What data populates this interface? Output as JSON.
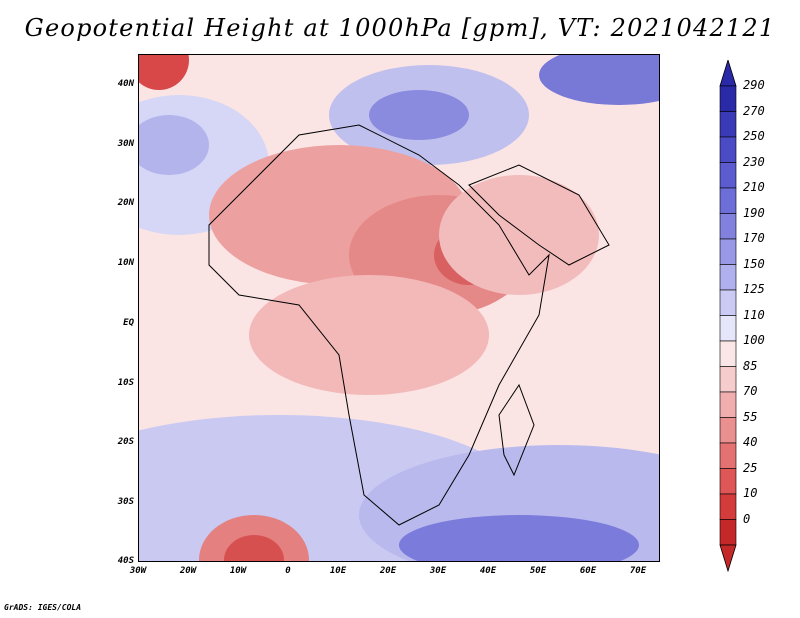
{
  "title": "Geopotential Height at 1000hPa [gpm], VT: 2021042121",
  "footer": "GrADS: IGES/COLA",
  "map": {
    "variable": "Geopotential Height",
    "level": "1000hPa",
    "units": "gpm",
    "valid_time": "2021042121",
    "lon_range": [
      -30,
      75
    ],
    "lat_range": [
      -40,
      45
    ],
    "lat_ticks": [
      {
        "value": 40,
        "label": "40N"
      },
      {
        "value": 30,
        "label": "30N"
      },
      {
        "value": 20,
        "label": "20N"
      },
      {
        "value": 10,
        "label": "10N"
      },
      {
        "value": 0,
        "label": "EQ"
      },
      {
        "value": -10,
        "label": "10S"
      },
      {
        "value": -20,
        "label": "20S"
      },
      {
        "value": -30,
        "label": "30S"
      },
      {
        "value": -40,
        "label": "40S"
      }
    ],
    "lon_ticks": [
      {
        "value": -30,
        "label": "30W"
      },
      {
        "value": -20,
        "label": "20W"
      },
      {
        "value": -10,
        "label": "10W"
      },
      {
        "value": 0,
        "label": "0"
      },
      {
        "value": 10,
        "label": "10E"
      },
      {
        "value": 20,
        "label": "20E"
      },
      {
        "value": 30,
        "label": "30E"
      },
      {
        "value": 40,
        "label": "40E"
      },
      {
        "value": 50,
        "label": "50E"
      },
      {
        "value": 60,
        "label": "60E"
      },
      {
        "value": 70,
        "label": "70E"
      }
    ]
  },
  "colorbar": {
    "labels": [
      "290",
      "270",
      "250",
      "230",
      "210",
      "190",
      "170",
      "150",
      "125",
      "110",
      "100",
      "85",
      "70",
      "55",
      "40",
      "25",
      "10",
      "0"
    ],
    "colors": [
      "#2a2aa8",
      "#3a3ab8",
      "#4b4bc6",
      "#5c5cd0",
      "#6e6ed8",
      "#8282de",
      "#9898e6",
      "#b0b0ee",
      "#cacaf4",
      "#e6e6fa",
      "#fae6e6",
      "#f6cccc",
      "#f0aeae",
      "#ea9090",
      "#e47272",
      "#de5656",
      "#d43c3c",
      "#c42828"
    ]
  }
}
